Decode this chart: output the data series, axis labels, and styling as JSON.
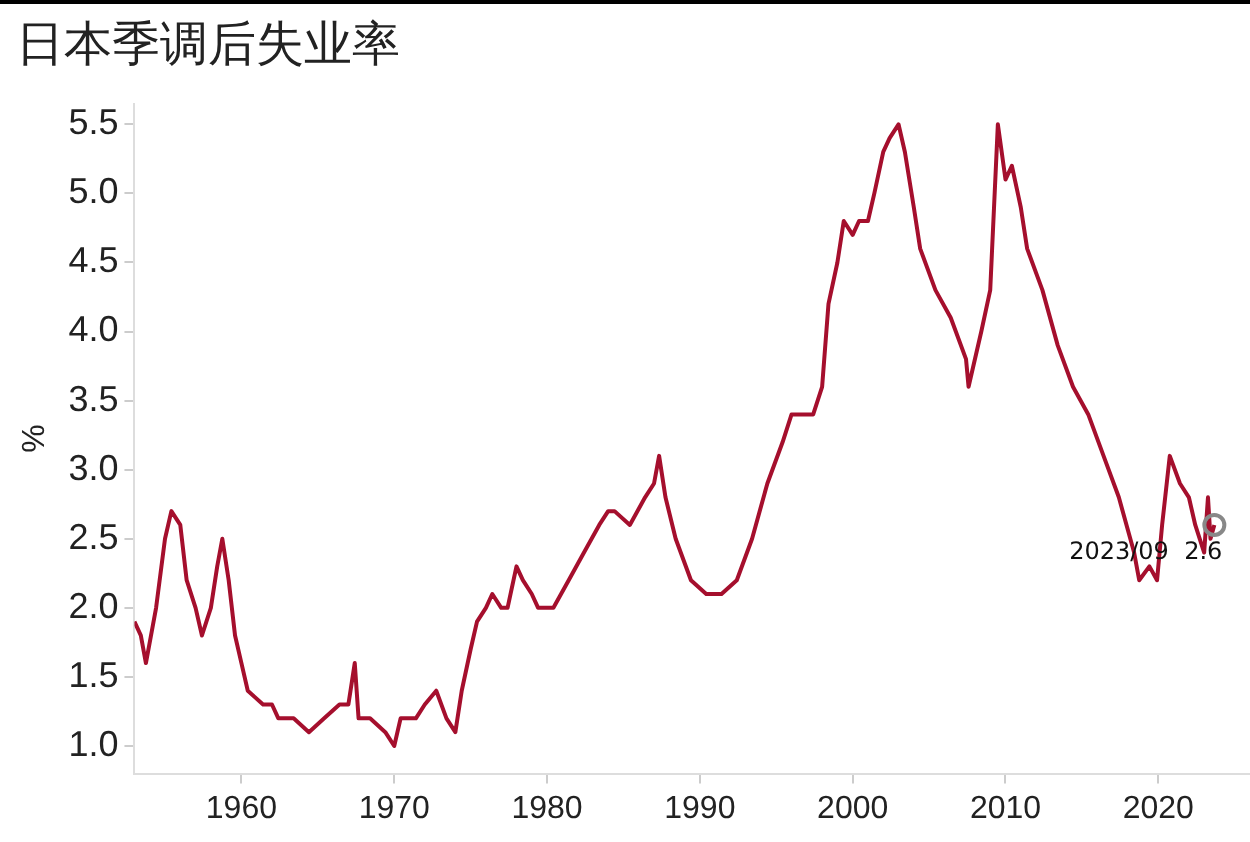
{
  "chart_data": {
    "type": "line",
    "title": "日本季调后失业率",
    "ylabel": "%",
    "x": [
      "1953-01",
      "1953-06",
      "1953-10",
      "1954-06",
      "1955-01",
      "1955-06",
      "1956-01",
      "1956-06",
      "1957-01",
      "1957-06",
      "1958-01",
      "1958-06",
      "1958-10",
      "1959-03",
      "1959-08",
      "1960-01",
      "1960-06",
      "1961-06",
      "1962-01",
      "1962-06",
      "1963-06",
      "1964-06",
      "1965-06",
      "1966-06",
      "1967-01",
      "1967-06",
      "1967-09",
      "1968-06",
      "1969-06",
      "1970-01",
      "1970-06",
      "1971-06",
      "1972-01",
      "1972-10",
      "1973-06",
      "1974-01",
      "1974-06",
      "1975-01",
      "1975-06",
      "1976-01",
      "1976-06",
      "1977-01",
      "1977-06",
      "1978-01",
      "1978-06",
      "1979-01",
      "1979-06",
      "1980-01",
      "1980-06",
      "1981-06",
      "1982-06",
      "1983-06",
      "1984-01",
      "1984-06",
      "1985-06",
      "1986-06",
      "1987-01",
      "1987-05",
      "1987-10",
      "1988-06",
      "1989-06",
      "1990-06",
      "1991-06",
      "1992-06",
      "1993-06",
      "1994-06",
      "1995-06",
      "1996-01",
      "1996-06",
      "1997-06",
      "1998-01",
      "1998-06",
      "1999-01",
      "1999-06",
      "2000-01",
      "2000-06",
      "2001-01",
      "2001-06",
      "2002-01",
      "2002-06",
      "2003-01",
      "2003-06",
      "2004-01",
      "2004-06",
      "2005-06",
      "2006-06",
      "2007-06",
      "2007-08",
      "2008-06",
      "2009-01",
      "2009-07",
      "2010-01",
      "2010-06",
      "2011-01",
      "2011-06",
      "2012-06",
      "2013-06",
      "2014-06",
      "2015-06",
      "2016-06",
      "2017-06",
      "2018-06",
      "2018-10",
      "2019-06",
      "2019-12",
      "2020-04",
      "2020-10",
      "2021-06",
      "2022-01",
      "2022-06",
      "2023-01",
      "2023-04",
      "2023-06",
      "2023-09"
    ],
    "series": [
      {
        "color": "#a50f2d",
        "values": [
          1.9,
          1.8,
          1.6,
          2.0,
          2.5,
          2.7,
          2.6,
          2.2,
          2.0,
          1.8,
          2.0,
          2.3,
          2.5,
          2.2,
          1.8,
          1.6,
          1.4,
          1.3,
          1.3,
          1.2,
          1.2,
          1.1,
          1.2,
          1.3,
          1.3,
          1.6,
          1.2,
          1.2,
          1.1,
          1.0,
          1.2,
          1.2,
          1.3,
          1.4,
          1.2,
          1.1,
          1.4,
          1.7,
          1.9,
          2.0,
          2.1,
          2.0,
          2.0,
          2.3,
          2.2,
          2.1,
          2.0,
          2.0,
          2.0,
          2.2,
          2.4,
          2.6,
          2.7,
          2.7,
          2.6,
          2.8,
          2.9,
          3.1,
          2.8,
          2.5,
          2.2,
          2.1,
          2.1,
          2.2,
          2.5,
          2.9,
          3.2,
          3.4,
          3.4,
          3.4,
          3.6,
          4.2,
          4.5,
          4.8,
          4.7,
          4.8,
          4.8,
          5.0,
          5.3,
          5.4,
          5.5,
          5.3,
          4.9,
          4.6,
          4.3,
          4.1,
          3.8,
          3.6,
          4.0,
          4.3,
          5.5,
          5.1,
          5.2,
          4.9,
          4.6,
          4.3,
          3.9,
          3.6,
          3.4,
          3.1,
          2.8,
          2.4,
          2.2,
          2.3,
          2.2,
          2.6,
          3.1,
          2.9,
          2.8,
          2.6,
          2.4,
          2.8,
          2.5,
          2.6
        ]
      }
    ],
    "xlim": [
      "1953-01",
      "2026-01"
    ],
    "xticks": [
      "1960",
      "1970",
      "1980",
      "1990",
      "2000",
      "2010",
      "2020"
    ],
    "ylim": [
      0.8,
      5.65
    ],
    "yticks": [
      {
        "value": 1,
        "label": "1.0"
      },
      1.5,
      {
        "value": 2,
        "label": "2.0"
      },
      2.5,
      {
        "value": 3,
        "label": "3.0"
      },
      3.5,
      {
        "value": 4,
        "label": "4.0"
      },
      4.5,
      {
        "value": 5,
        "label": "5.0"
      },
      5.5
    ],
    "annotations": [
      "2023/09  2.6"
    ],
    "grid": false,
    "legend": false,
    "marker": "none",
    "line_style": "solid"
  }
}
